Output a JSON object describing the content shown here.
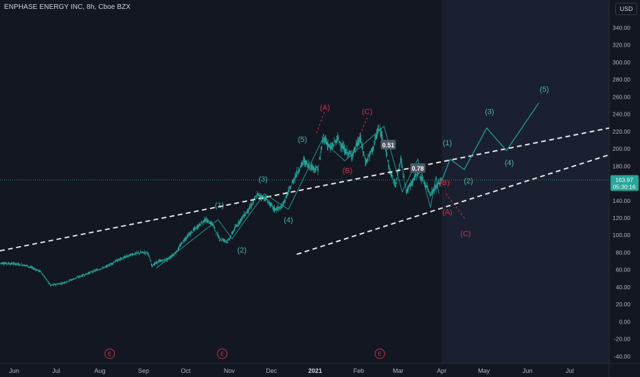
{
  "header": {
    "symbol_title": "ENPHASE ENERGY INC, 8h, Cboe BZX",
    "currency": "USD"
  },
  "price_label": {
    "price": "163.97",
    "countdown": "05:30:16"
  },
  "colors": {
    "background": "#131722",
    "future_zone": "#1a2030",
    "candle": "#26a69a",
    "wave_line": "#26a69a",
    "teal_labels": "#4bb8b0",
    "red_labels": "#d5314a",
    "trendlines": "#e8e8e8",
    "axis_text": "#b2b5be",
    "price_badge": "#4f5966"
  },
  "chart_data": {
    "type": "line",
    "title": "ENPHASE ENERGY INC, 8h, Cboe BZX",
    "y_axis": {
      "ticks": [
        340,
        320,
        300,
        280,
        260,
        240,
        220,
        200,
        180,
        160,
        140,
        120,
        100,
        80,
        60,
        40,
        20,
        0,
        -20,
        -40
      ],
      "tick_labels": [
        "340.00",
        "320.00",
        "300.00",
        "280.00",
        "260.00",
        "240.00",
        "220.00",
        "200.00",
        "180.00",
        "160.00",
        "140.00",
        "120.00",
        "100.00",
        "80.00",
        "60.00",
        "40.00",
        "20.00",
        "0.00",
        "-20.00",
        "-40.00"
      ],
      "range": [
        -48,
        372
      ],
      "position": "right"
    },
    "x_axis": {
      "tick_labels": [
        "Jun",
        "Jul",
        "Aug",
        "Sep",
        "Oct",
        "Nov",
        "Dec",
        "2021",
        "Feb",
        "Mar",
        "Apr",
        "May",
        "Jun",
        "Jul"
      ],
      "tick_dates": [
        "2020-06-01",
        "2020-07-01",
        "2020-08-01",
        "2020-09-01",
        "2020-10-01",
        "2020-11-01",
        "2020-12-01",
        "2021-01-01",
        "2021-02-01",
        "2021-03-01",
        "2021-04-01",
        "2021-05-01",
        "2021-06-01",
        "2021-07-01"
      ],
      "range": [
        "2020-05-22",
        "2021-07-29"
      ]
    },
    "grid": false,
    "last_date": "2021-04-01",
    "price_series": [
      [
        "2020-05-22",
        68
      ],
      [
        "2020-06-02",
        67
      ],
      [
        "2020-06-10",
        65
      ],
      [
        "2020-06-20",
        58
      ],
      [
        "2020-06-27",
        42
      ],
      [
        "2020-07-06",
        45
      ],
      [
        "2020-07-14",
        50
      ],
      [
        "2020-07-22",
        55
      ],
      [
        "2020-07-30",
        60
      ],
      [
        "2020-08-06",
        64
      ],
      [
        "2020-08-12",
        70
      ],
      [
        "2020-08-18",
        74
      ],
      [
        "2020-08-24",
        78
      ],
      [
        "2020-08-30",
        80
      ],
      [
        "2020-09-04",
        80
      ],
      [
        "2020-09-07",
        65
      ],
      [
        "2020-09-12",
        70
      ],
      [
        "2020-09-18",
        72
      ],
      [
        "2020-09-24",
        80
      ],
      [
        "2020-09-30",
        95
      ],
      [
        "2020-10-08",
        108
      ],
      [
        "2020-10-15",
        118
      ],
      [
        "2020-10-20",
        113
      ],
      [
        "2020-10-25",
        96
      ],
      [
        "2020-10-31",
        93
      ],
      [
        "2020-11-05",
        108
      ],
      [
        "2020-11-10",
        120
      ],
      [
        "2020-11-15",
        130
      ],
      [
        "2020-11-21",
        147
      ],
      [
        "2020-11-27",
        142
      ],
      [
        "2020-12-03",
        130
      ],
      [
        "2020-12-08",
        132
      ],
      [
        "2020-12-13",
        150
      ],
      [
        "2020-12-19",
        172
      ],
      [
        "2020-12-24",
        186
      ],
      [
        "2020-12-28",
        180
      ],
      [
        "2021-01-03",
        176
      ],
      [
        "2021-01-07",
        214
      ],
      [
        "2021-01-12",
        200
      ],
      [
        "2021-01-17",
        212
      ],
      [
        "2021-01-22",
        198
      ],
      [
        "2021-01-27",
        192
      ],
      [
        "2021-02-02",
        212
      ],
      [
        "2021-02-06",
        184
      ],
      [
        "2021-02-11",
        200
      ],
      [
        "2021-02-15",
        223
      ],
      [
        "2021-02-19",
        210
      ],
      [
        "2021-02-23",
        175
      ],
      [
        "2021-02-27",
        158
      ],
      [
        "2021-03-03",
        188
      ],
      [
        "2021-03-07",
        150
      ],
      [
        "2021-03-11",
        162
      ],
      [
        "2021-03-15",
        172
      ],
      [
        "2021-03-20",
        160
      ],
      [
        "2021-03-24",
        148
      ],
      [
        "2021-03-28",
        156
      ],
      [
        "2021-04-01",
        164
      ]
    ],
    "wave_path": [
      [
        "2020-09-10",
        62
      ],
      [
        "2020-10-24",
        118
      ],
      [
        "2020-11-03",
        96
      ],
      [
        "2020-11-26",
        148
      ],
      [
        "2020-12-13",
        130
      ],
      [
        "2021-01-06",
        210
      ],
      [
        "2021-01-22",
        186
      ],
      [
        "2021-02-19",
        226
      ],
      [
        "2021-03-04",
        150
      ],
      [
        "2021-03-15",
        188
      ],
      [
        "2021-03-24",
        132
      ],
      [
        "2021-03-28",
        168
      ],
      [
        "2021-03-30",
        148
      ]
    ],
    "projection_path": [
      [
        "2021-04-01",
        163
      ],
      [
        "2021-04-07",
        188
      ],
      [
        "2021-04-17",
        176
      ],
      [
        "2021-05-03",
        224
      ],
      [
        "2021-05-17",
        198
      ],
      [
        "2021-06-09",
        253
      ]
    ],
    "wave_counts": [
      {
        "label": "(1)",
        "date": "2020-10-25",
        "value": 132,
        "color": "teal"
      },
      {
        "label": "(2)",
        "date": "2020-11-10",
        "value": 80,
        "color": "teal"
      },
      {
        "label": "(3)",
        "date": "2020-11-25",
        "value": 162,
        "color": "teal"
      },
      {
        "label": "(4)",
        "date": "2020-12-13",
        "value": 115,
        "color": "teal"
      },
      {
        "label": "(5)",
        "date": "2020-12-23",
        "value": 208,
        "color": "teal"
      },
      {
        "label": "(A)",
        "date": "2021-01-08",
        "value": 245,
        "color": "red"
      },
      {
        "label": "(B)",
        "date": "2021-01-24",
        "value": 172,
        "color": "red"
      },
      {
        "label": "(C)",
        "date": "2021-02-07",
        "value": 240,
        "color": "red"
      },
      {
        "label": "(B)",
        "date": "2021-04-03",
        "value": 158,
        "color": "red"
      },
      {
        "label": "(A)",
        "date": "2021-04-05",
        "value": 124,
        "color": "red"
      },
      {
        "label": "(C)",
        "date": "2021-04-18",
        "value": 99,
        "color": "red"
      },
      {
        "label": "(1)",
        "date": "2021-04-05",
        "value": 204,
        "color": "teal"
      },
      {
        "label": "(2)",
        "date": "2021-04-20",
        "value": 160,
        "color": "teal"
      },
      {
        "label": "(3)",
        "date": "2021-05-05",
        "value": 240,
        "color": "teal"
      },
      {
        "label": "(4)",
        "date": "2021-05-19",
        "value": 181,
        "color": "teal"
      },
      {
        "label": "(5)",
        "date": "2021-06-13",
        "value": 266,
        "color": "teal"
      }
    ],
    "fib_badges": [
      {
        "label": "0.51",
        "date": "2021-02-22",
        "value": 204
      },
      {
        "label": "0.78",
        "date": "2021-03-15",
        "value": 177
      }
    ],
    "earnings_markers": [
      {
        "label": "E",
        "date": "2020-08-08"
      },
      {
        "label": "E",
        "date": "2020-10-27"
      },
      {
        "label": "E",
        "date": "2021-02-16"
      }
    ],
    "trendlines": [
      {
        "from": [
          "2020-05-22",
          82
        ],
        "to": [
          "2021-07-29",
          224
        ],
        "style": "dashed"
      },
      {
        "from": [
          "2020-12-19",
          78
        ],
        "to": [
          "2021-07-29",
          193
        ],
        "style": "dashed"
      }
    ]
  }
}
